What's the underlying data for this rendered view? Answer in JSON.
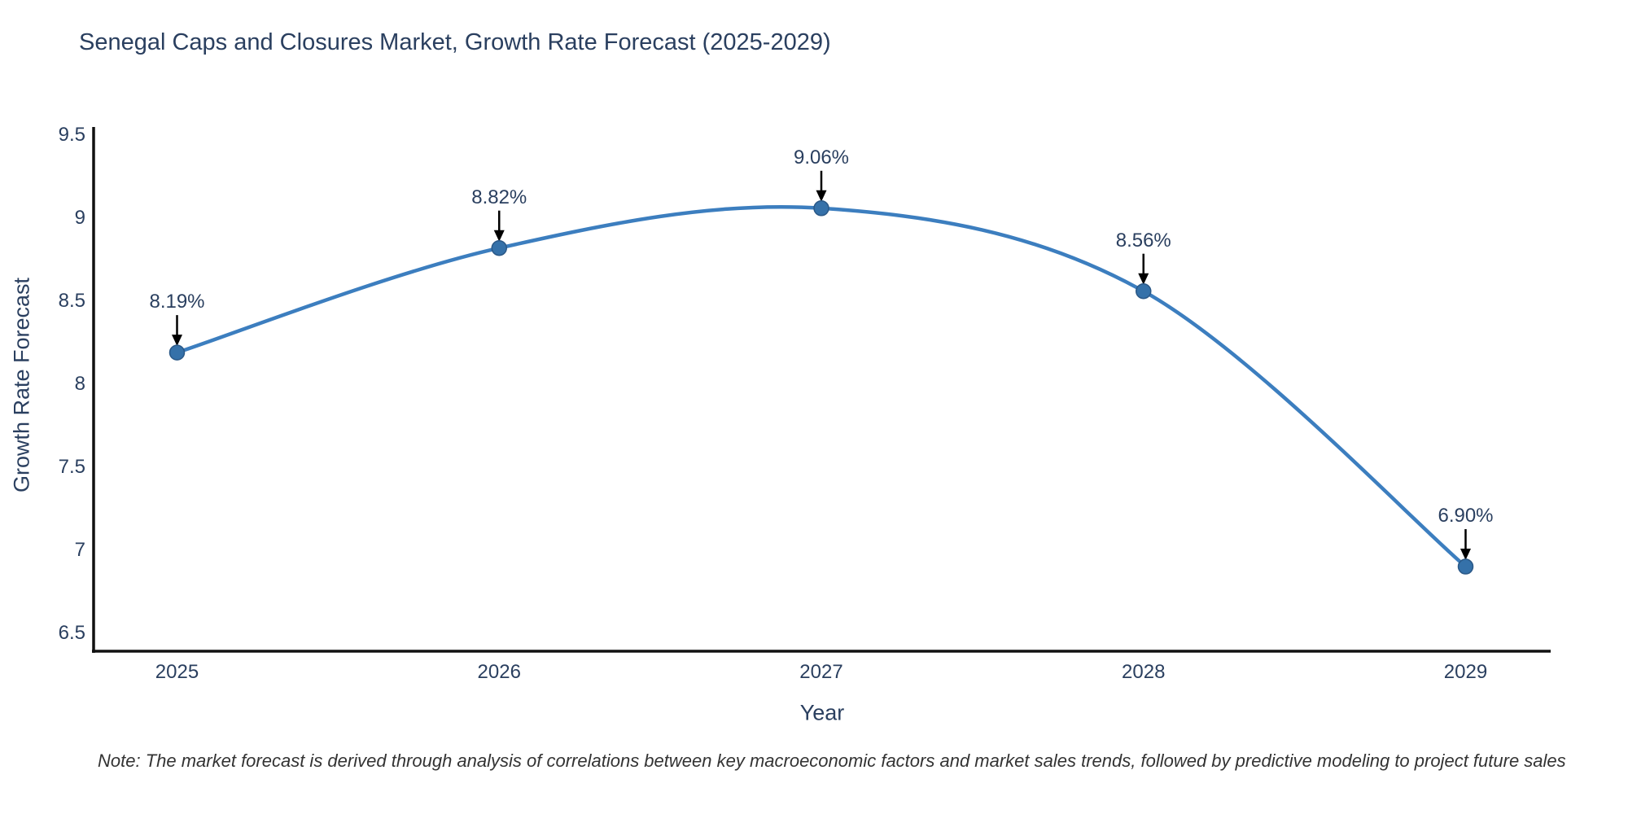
{
  "chart": {
    "title": "Senegal Caps and Closures Market, Growth Rate Forecast (2025-2029)",
    "note": "Note: The market forecast is derived through analysis of correlations between key macroeconomic factors and market sales trends, followed by predictive modeling to project future sales"
  },
  "chart_data": {
    "type": "line",
    "title": "Senegal Caps and Closures Market, Growth Rate Forecast (2025-2029)",
    "xlabel": "Year",
    "ylabel": "Growth Rate Forecast",
    "categories": [
      "2025",
      "2026",
      "2027",
      "2028",
      "2029"
    ],
    "series": [
      {
        "name": "Growth Rate Forecast",
        "values": [
          8.19,
          8.82,
          9.06,
          8.56,
          6.9
        ]
      }
    ],
    "point_labels": [
      "8.19%",
      "8.82%",
      "9.06%",
      "8.56%",
      "6.90%"
    ],
    "ytick_labels": [
      "6.5",
      "7",
      "7.5",
      "8",
      "8.5",
      "9",
      "9.5"
    ],
    "ytick_values": [
      6.5,
      7.0,
      7.5,
      8.0,
      8.5,
      9.0,
      9.5
    ],
    "ylim": [
      6.39,
      9.53
    ],
    "grid": false,
    "legend": "none",
    "line_shape": "spline",
    "colors": {
      "line": "#3c7ebf",
      "marker_fill": "#3571a9",
      "marker_edge": "#2a5887",
      "arrow": "#000000",
      "axis": "#111111",
      "text": "#2a3f5f"
    }
  }
}
